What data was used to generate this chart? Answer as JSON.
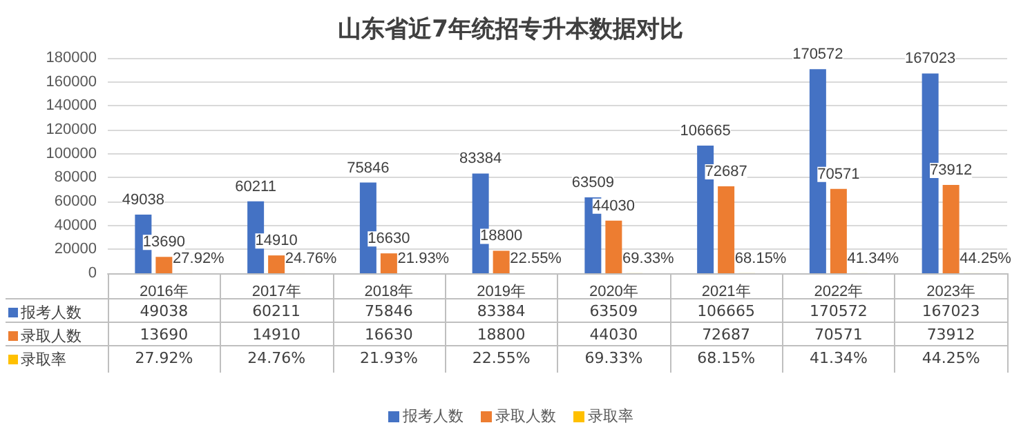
{
  "chart_data": {
    "type": "bar",
    "title": "山东省近7年统招专升本数据对比",
    "categories": [
      "2016年",
      "2017年",
      "2018年",
      "2019年",
      "2020年",
      "2021年",
      "2022年",
      "2023年"
    ],
    "series": [
      {
        "name": "报考人数",
        "color": "#4472c4",
        "values": [
          49038,
          60211,
          75846,
          83384,
          63509,
          106665,
          170572,
          167023
        ],
        "value_labels": [
          "49038",
          "60211",
          "75846",
          "83384",
          "63509",
          "106665",
          "170572",
          "167023"
        ]
      },
      {
        "name": "录取人数",
        "color": "#ed7d31",
        "values": [
          13690,
          14910,
          16630,
          18800,
          44030,
          72687,
          70571,
          73912
        ],
        "value_labels": [
          "13690",
          "14910",
          "16630",
          "18800",
          "44030",
          "72687",
          "70571",
          "73912"
        ]
      },
      {
        "name": "录取率",
        "color": "#ffc000",
        "values": [
          27.92,
          24.76,
          21.93,
          22.55,
          69.33,
          68.15,
          41.34,
          44.25
        ],
        "value_labels": [
          "27.92%",
          "24.76%",
          "21.93%",
          "22.55%",
          "69.33%",
          "68.15%",
          "41.34%",
          "44.25%"
        ]
      }
    ],
    "ylim": [
      0,
      180000
    ],
    "yticks": [
      0,
      20000,
      40000,
      60000,
      80000,
      100000,
      120000,
      140000,
      160000,
      180000
    ],
    "grid": "y",
    "legend": "bottom",
    "data_labels": true
  }
}
